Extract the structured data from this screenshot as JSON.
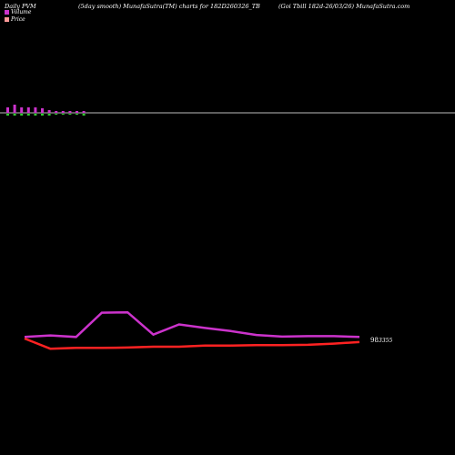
{
  "header": {
    "left": "Daily PVM",
    "middle": "(5day smooth) MunafaSutra(TM) charts for 182D260326_TB",
    "right": "(Goi  Tbill 182d-26/03/26) MunafaSutra.com"
  },
  "legend": [
    {
      "label": "Volume",
      "color": "#cc33cc"
    },
    {
      "label": "Price",
      "color": "#ff9999"
    }
  ],
  "colors": {
    "volume_up": "#cc33cc",
    "volume_down": "#33cc33",
    "price_line": "#ff2222",
    "smooth_line": "#cc33cc",
    "baseline": "#bbbbbb"
  },
  "chart_data": [
    {
      "type": "bar",
      "title": "Volume",
      "series": [
        {
          "name": "Volume",
          "values": [
            6,
            9,
            6,
            6,
            6,
            5,
            3,
            2,
            2,
            2,
            2,
            2
          ]
        }
      ],
      "down_values": [
        2,
        2,
        2,
        2,
        2,
        2,
        2,
        1,
        1,
        1,
        1,
        2
      ]
    },
    {
      "type": "line",
      "price_label": "98",
      "price_label_suffix": "3355",
      "series": [
        {
          "name": "Price",
          "values": [
            95.0,
            93.7,
            93.8,
            93.8,
            93.85,
            93.95,
            93.95,
            94.1,
            94.1,
            94.15,
            94.15,
            94.2,
            94.35,
            94.55
          ]
        },
        {
          "name": "Volume",
          "values": [
            95.2,
            95.4,
            95.2,
            98.3,
            98.35,
            95.5,
            96.8,
            96.35,
            95.95,
            95.45,
            95.25,
            95.3,
            95.3,
            95.2
          ]
        }
      ],
      "ylim": [
        85,
        100
      ]
    }
  ]
}
